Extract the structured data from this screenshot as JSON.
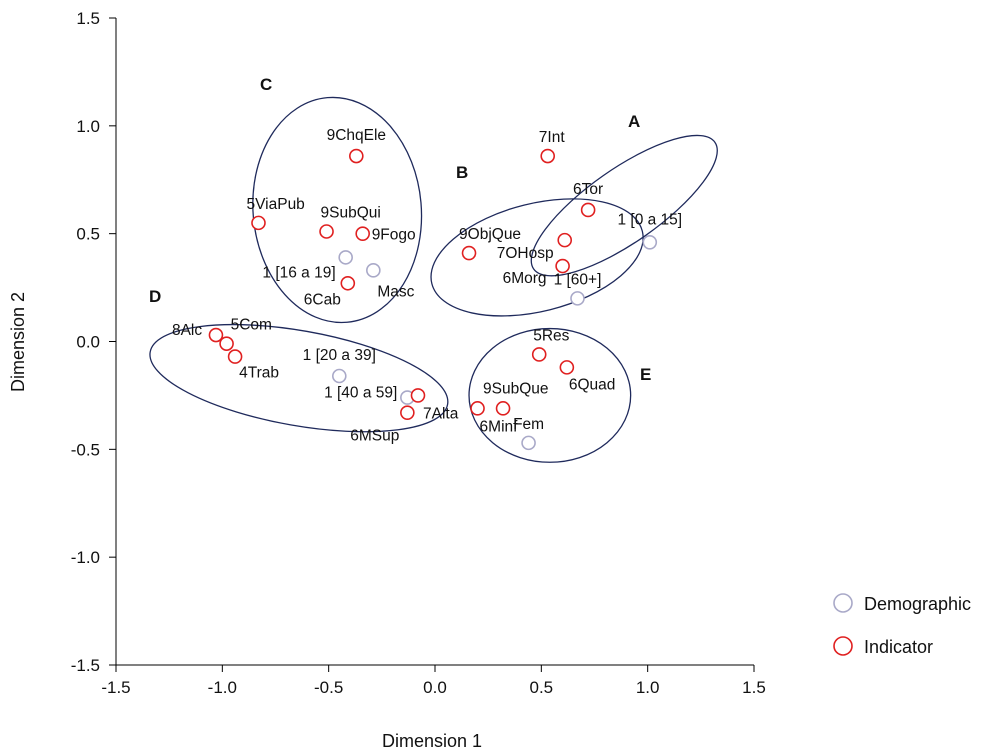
{
  "chart_data": {
    "type": "scatter",
    "xlabel": "Dimension 1",
    "ylabel": "Dimension 2",
    "xlim": [
      -1.5,
      1.5
    ],
    "ylim": [
      -1.5,
      1.5
    ],
    "xticks": [
      "-1.5",
      "-1.0",
      "-0.5",
      "0.0",
      "0.5",
      "1.0",
      "1.5"
    ],
    "yticks": [
      "1.5",
      "1.0",
      "0.5",
      "0.0",
      "-0.5",
      "-1.0",
      "-1.5"
    ],
    "grid": false,
    "legend_position": "bottom-right",
    "colors": {
      "Demographic": "#a9a9c8",
      "Indicator": "#e02020",
      "ellipse": "#1f2a5c"
    },
    "series": [
      {
        "name": "Demographic",
        "points": [
          {
            "label": "1 [0 a 15]",
            "x": 1.01,
            "y": 0.46
          },
          {
            "label": "1 [60+]",
            "x": 0.67,
            "y": 0.2
          },
          {
            "label": "1 [16 a 19]",
            "x": -0.42,
            "y": 0.39
          },
          {
            "label": "Masc",
            "x": -0.29,
            "y": 0.33
          },
          {
            "label": "1 [20 a 39]",
            "x": -0.45,
            "y": -0.16
          },
          {
            "label": "1 [40 a 59]",
            "x": -0.13,
            "y": -0.26
          },
          {
            "label": "Fem",
            "x": 0.44,
            "y": -0.47
          }
        ]
      },
      {
        "name": "Indicator",
        "points": [
          {
            "label": "7Int",
            "x": 0.53,
            "y": 0.86
          },
          {
            "label": "6Tor",
            "x": 0.72,
            "y": 0.61
          },
          {
            "label": "9ObjQue",
            "x": 0.16,
            "y": 0.41
          },
          {
            "label": "7OHosp",
            "x": 0.61,
            "y": 0.47
          },
          {
            "label": "6Morg",
            "x": 0.6,
            "y": 0.35
          },
          {
            "label": "9ChqEle",
            "x": -0.37,
            "y": 0.86
          },
          {
            "label": "5ViaPub",
            "x": -0.83,
            "y": 0.55
          },
          {
            "label": "9SubQui",
            "x": -0.51,
            "y": 0.51
          },
          {
            "label": "9Fogo",
            "x": -0.34,
            "y": 0.5
          },
          {
            "label": "6Cab",
            "x": -0.41,
            "y": 0.27
          },
          {
            "label": "8Alc",
            "x": -1.03,
            "y": 0.03
          },
          {
            "label": "5Com",
            "x": -0.98,
            "y": -0.01
          },
          {
            "label": "4Trab",
            "x": -0.94,
            "y": -0.07
          },
          {
            "label": "7Alta",
            "x": -0.08,
            "y": -0.25
          },
          {
            "label": "6MSup",
            "x": -0.13,
            "y": -0.33
          },
          {
            "label": "5Res",
            "x": 0.49,
            "y": -0.06
          },
          {
            "label": "6Quad",
            "x": 0.62,
            "y": -0.12
          },
          {
            "label": "9SubQue",
            "x": 0.32,
            "y": -0.31
          },
          {
            "label": "6Minf",
            "x": 0.2,
            "y": -0.31
          }
        ]
      }
    ],
    "clusters": [
      {
        "label": "A",
        "cx": 0.89,
        "cy": 0.63,
        "rx": 0.52,
        "ry": 0.17,
        "angle_deg": 35
      },
      {
        "label": "B",
        "cx": 0.48,
        "cy": 0.39,
        "rx": 0.51,
        "ry": 0.25,
        "angle_deg": 14
      },
      {
        "label": "C",
        "cx": -0.46,
        "cy": 0.61,
        "rx": 0.53,
        "ry": 0.39,
        "angle_deg": 95
      },
      {
        "label": "D",
        "cx": -0.64,
        "cy": -0.17,
        "rx": 0.71,
        "ry": 0.22,
        "angle_deg": -10
      },
      {
        "label": "E",
        "cx": 0.54,
        "cy": -0.25,
        "rx": 0.38,
        "ry": 0.31,
        "angle_deg": 0
      }
    ]
  }
}
